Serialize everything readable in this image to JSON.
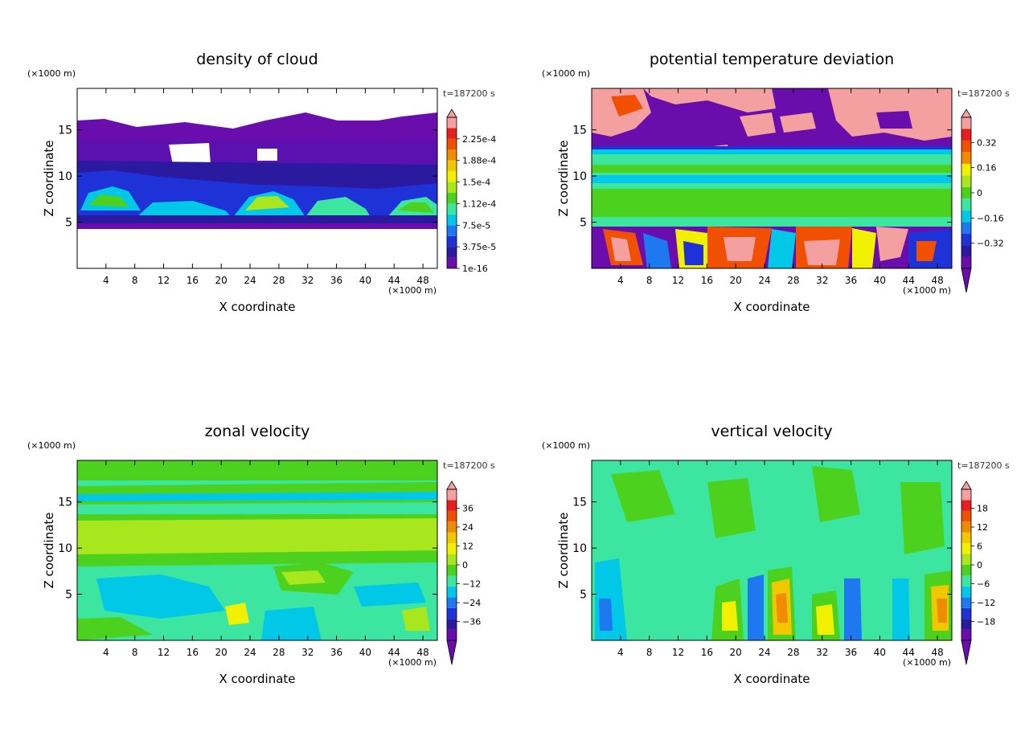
{
  "chart_data": [
    {
      "type": "heatmap",
      "title": "density of cloud",
      "xlabel": "X coordinate",
      "ylabel": "Z coordinate",
      "x_unit": "(×1000 m)",
      "y_unit": "(×1000 m)",
      "time_label": "t=187200 s",
      "xlim": [
        0,
        50
      ],
      "ylim": [
        0,
        19.5
      ],
      "xticks": [
        "4",
        "8",
        "12",
        "16",
        "20",
        "24",
        "28",
        "32",
        "36",
        "40",
        "44",
        "48"
      ],
      "yticks": [
        "5",
        "10",
        "15"
      ],
      "colorbar": {
        "labels": [
          "1e-16",
          "3.75e-5",
          "7.5e-5",
          "1.12e-4",
          "1.5e-4",
          "1.88e-4",
          "2.25e-4"
        ],
        "colors": [
          "#6a0dad",
          "#2a1aa0",
          "#1e32d8",
          "#1e78f0",
          "#00c8e6",
          "#3ce6a0",
          "#4cd21e",
          "#a8e61e",
          "#f0f000",
          "#f0c800",
          "#f08c00",
          "#f05000",
          "#e61e1e",
          "#f5a0a0"
        ],
        "extend_low": false
      }
    },
    {
      "type": "heatmap",
      "title": "potential temperature deviation",
      "xlabel": "X coordinate",
      "ylabel": "Z coordinate",
      "x_unit": "(×1000 m)",
      "y_unit": "(×1000 m)",
      "time_label": "t=187200 s",
      "xlim": [
        0,
        50
      ],
      "ylim": [
        0,
        19.5
      ],
      "xticks": [
        "4",
        "8",
        "12",
        "16",
        "20",
        "24",
        "28",
        "32",
        "36",
        "40",
        "44",
        "48"
      ],
      "yticks": [
        "5",
        "10",
        "15"
      ],
      "colorbar": {
        "labels": [
          "−0.32",
          "−0.16",
          "0",
          "0.16",
          "0.32"
        ],
        "colors": [
          "#6a0dad",
          "#2a1aa0",
          "#1e32d8",
          "#1e78f0",
          "#00c8e6",
          "#3ce6a0",
          "#4cd21e",
          "#a8e61e",
          "#f0f000",
          "#f08c00",
          "#f05000",
          "#e61e1e",
          "#f5a0a0"
        ],
        "extend_low": true
      }
    },
    {
      "type": "heatmap",
      "title": "zonal velocity",
      "xlabel": "X coordinate",
      "ylabel": "Z coordinate",
      "x_unit": "(×1000 m)",
      "y_unit": "(×1000 m)",
      "time_label": "t=187200 s",
      "xlim": [
        0,
        50
      ],
      "ylim": [
        0,
        19.5
      ],
      "xticks": [
        "4",
        "8",
        "12",
        "16",
        "20",
        "24",
        "28",
        "32",
        "36",
        "40",
        "44",
        "48"
      ],
      "yticks": [
        "5",
        "10",
        "15"
      ],
      "colorbar": {
        "labels": [
          "−36",
          "−24",
          "−12",
          "0",
          "12",
          "24",
          "36"
        ],
        "colors": [
          "#6a0dad",
          "#2a1aa0",
          "#1e32d8",
          "#1e78f0",
          "#00c8e6",
          "#3ce6a0",
          "#4cd21e",
          "#a8e61e",
          "#f0f000",
          "#f0c800",
          "#f08c00",
          "#f05000",
          "#e61e1e",
          "#f5a0a0"
        ],
        "extend_low": true
      }
    },
    {
      "type": "heatmap",
      "title": "vertical velocity",
      "xlabel": "X coordinate",
      "ylabel": "Z coordinate",
      "x_unit": "(×1000 m)",
      "y_unit": "(×1000 m)",
      "time_label": "t=187200 s",
      "xlim": [
        0,
        50
      ],
      "ylim": [
        0,
        19.5
      ],
      "xticks": [
        "4",
        "8",
        "12",
        "16",
        "20",
        "24",
        "28",
        "32",
        "36",
        "40",
        "44",
        "48"
      ],
      "yticks": [
        "5",
        "10",
        "15"
      ],
      "colorbar": {
        "labels": [
          "−18",
          "−12",
          "−6",
          "0",
          "6",
          "12",
          "18"
        ],
        "colors": [
          "#6a0dad",
          "#2a1aa0",
          "#1e32d8",
          "#1e78f0",
          "#00c8e6",
          "#3ce6a0",
          "#4cd21e",
          "#a8e61e",
          "#f0f000",
          "#f0c800",
          "#f08c00",
          "#f05000",
          "#e61e1e",
          "#f5a0a0"
        ],
        "extend_low": true
      }
    }
  ]
}
